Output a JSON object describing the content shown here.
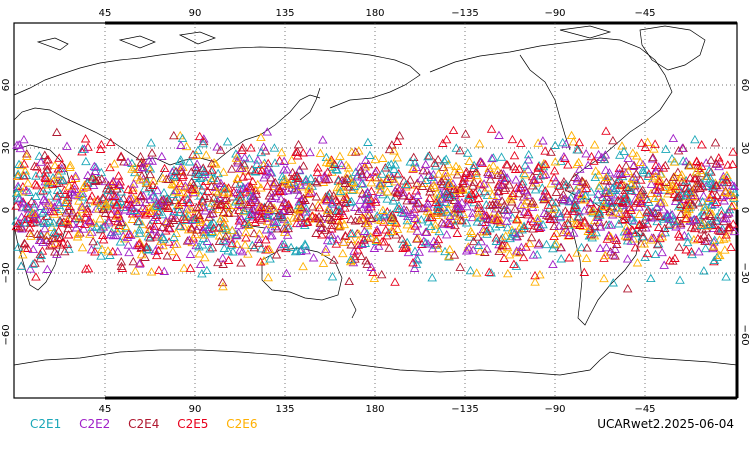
{
  "map": {
    "top_ticks": [
      "45",
      "90",
      "135",
      "180",
      "−135",
      "−90",
      "−45"
    ],
    "bottom_ticks": [
      "45",
      "90",
      "135",
      "180",
      "−135",
      "−90",
      "−45"
    ],
    "lat_ticks": [
      "60",
      "30",
      "0",
      "−30",
      "−60"
    ],
    "lon_range": [
      0,
      360
    ],
    "lat_range": [
      -90,
      90
    ],
    "grid": true,
    "marker": "triangle-outline",
    "observed_latitude_band": [
      -40,
      45
    ]
  },
  "legend": [
    {
      "label": "C2E1",
      "color": "#1aa7b8"
    },
    {
      "label": "C2E2",
      "color": "#a020c8"
    },
    {
      "label": "C2E4",
      "color": "#b01830"
    },
    {
      "label": "C2E5",
      "color": "#e8001c"
    },
    {
      "label": "C2E6",
      "color": "#ffb000"
    }
  ],
  "stamp": "UCARwet2.2025-06-04"
}
